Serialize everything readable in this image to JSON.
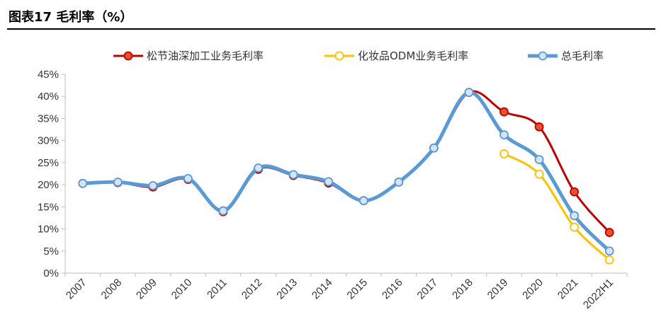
{
  "figure": {
    "title": "图表17 毛利率（%）"
  },
  "chart_data": {
    "type": "line",
    "title": "",
    "xlabel": "",
    "ylabel": "",
    "categories": [
      "2007",
      "2008",
      "2009",
      "2010",
      "2011",
      "2012",
      "2013",
      "2014",
      "2015",
      "2016",
      "2017",
      "2018",
      "2019",
      "2020",
      "2021",
      "2022H1"
    ],
    "y_ticks": [
      "0%",
      "5%",
      "10%",
      "15%",
      "20%",
      "25%",
      "30%",
      "35%",
      "40%",
      "45%"
    ],
    "ylim": [
      0,
      45
    ],
    "y_unit": "%",
    "grid": false,
    "legend_position": "top",
    "series": [
      {
        "name": "松节油深加工业务毛利率",
        "color": "#c00000",
        "marker_fill": "#e8502a",
        "values": [
          20.3,
          20.5,
          19.5,
          21.2,
          13.9,
          23.5,
          22.1,
          20.4,
          16.4,
          20.6,
          28.3,
          40.9,
          36.5,
          33.1,
          18.4,
          9.2
        ]
      },
      {
        "name": "化妆品ODM业务毛利率",
        "color": "#ffc000",
        "marker_fill": "#ffffff",
        "values": [
          null,
          null,
          null,
          null,
          null,
          null,
          null,
          null,
          null,
          null,
          null,
          null,
          27.0,
          22.4,
          10.4,
          3.0
        ]
      },
      {
        "name": "总毛利率",
        "color": "#5b9bd5",
        "marker_fill": "#d6e4f5",
        "values": [
          20.3,
          20.6,
          19.8,
          21.4,
          14.1,
          23.8,
          22.3,
          20.7,
          16.4,
          20.6,
          28.3,
          40.9,
          31.3,
          25.7,
          13.0,
          5.0
        ]
      }
    ]
  }
}
